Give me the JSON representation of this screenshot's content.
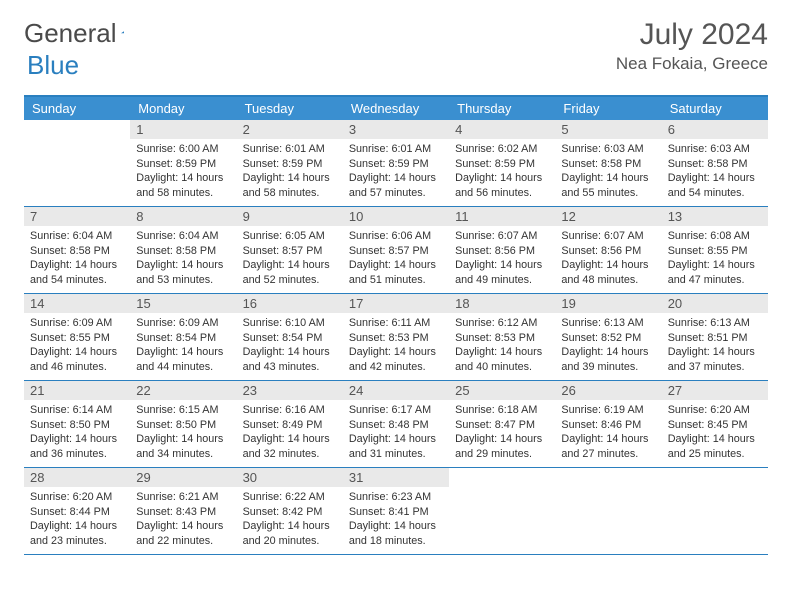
{
  "colors": {
    "header_bar": "#3a8fd0",
    "border_rule": "#2a7fbf",
    "daynum_bg": "#e9e9e9",
    "text": "#333333",
    "title_text": "#555555",
    "logo_gray": "#4a4a4a",
    "logo_blue": "#2a7fbf",
    "background": "#ffffff"
  },
  "logo": {
    "text1": "General",
    "text2": "Blue"
  },
  "title": {
    "month": "July 2024",
    "location": "Nea Fokaia, Greece"
  },
  "day_headers": [
    "Sunday",
    "Monday",
    "Tuesday",
    "Wednesday",
    "Thursday",
    "Friday",
    "Saturday"
  ],
  "weeks": [
    [
      {
        "n": "",
        "sr": "",
        "ss": "",
        "dl1": "",
        "dl2": "",
        "empty": true
      },
      {
        "n": "1",
        "sr": "Sunrise: 6:00 AM",
        "ss": "Sunset: 8:59 PM",
        "dl1": "Daylight: 14 hours",
        "dl2": "and 58 minutes."
      },
      {
        "n": "2",
        "sr": "Sunrise: 6:01 AM",
        "ss": "Sunset: 8:59 PM",
        "dl1": "Daylight: 14 hours",
        "dl2": "and 58 minutes."
      },
      {
        "n": "3",
        "sr": "Sunrise: 6:01 AM",
        "ss": "Sunset: 8:59 PM",
        "dl1": "Daylight: 14 hours",
        "dl2": "and 57 minutes."
      },
      {
        "n": "4",
        "sr": "Sunrise: 6:02 AM",
        "ss": "Sunset: 8:59 PM",
        "dl1": "Daylight: 14 hours",
        "dl2": "and 56 minutes."
      },
      {
        "n": "5",
        "sr": "Sunrise: 6:03 AM",
        "ss": "Sunset: 8:58 PM",
        "dl1": "Daylight: 14 hours",
        "dl2": "and 55 minutes."
      },
      {
        "n": "6",
        "sr": "Sunrise: 6:03 AM",
        "ss": "Sunset: 8:58 PM",
        "dl1": "Daylight: 14 hours",
        "dl2": "and 54 minutes."
      }
    ],
    [
      {
        "n": "7",
        "sr": "Sunrise: 6:04 AM",
        "ss": "Sunset: 8:58 PM",
        "dl1": "Daylight: 14 hours",
        "dl2": "and 54 minutes."
      },
      {
        "n": "8",
        "sr": "Sunrise: 6:04 AM",
        "ss": "Sunset: 8:58 PM",
        "dl1": "Daylight: 14 hours",
        "dl2": "and 53 minutes."
      },
      {
        "n": "9",
        "sr": "Sunrise: 6:05 AM",
        "ss": "Sunset: 8:57 PM",
        "dl1": "Daylight: 14 hours",
        "dl2": "and 52 minutes."
      },
      {
        "n": "10",
        "sr": "Sunrise: 6:06 AM",
        "ss": "Sunset: 8:57 PM",
        "dl1": "Daylight: 14 hours",
        "dl2": "and 51 minutes."
      },
      {
        "n": "11",
        "sr": "Sunrise: 6:07 AM",
        "ss": "Sunset: 8:56 PM",
        "dl1": "Daylight: 14 hours",
        "dl2": "and 49 minutes."
      },
      {
        "n": "12",
        "sr": "Sunrise: 6:07 AM",
        "ss": "Sunset: 8:56 PM",
        "dl1": "Daylight: 14 hours",
        "dl2": "and 48 minutes."
      },
      {
        "n": "13",
        "sr": "Sunrise: 6:08 AM",
        "ss": "Sunset: 8:55 PM",
        "dl1": "Daylight: 14 hours",
        "dl2": "and 47 minutes."
      }
    ],
    [
      {
        "n": "14",
        "sr": "Sunrise: 6:09 AM",
        "ss": "Sunset: 8:55 PM",
        "dl1": "Daylight: 14 hours",
        "dl2": "and 46 minutes."
      },
      {
        "n": "15",
        "sr": "Sunrise: 6:09 AM",
        "ss": "Sunset: 8:54 PM",
        "dl1": "Daylight: 14 hours",
        "dl2": "and 44 minutes."
      },
      {
        "n": "16",
        "sr": "Sunrise: 6:10 AM",
        "ss": "Sunset: 8:54 PM",
        "dl1": "Daylight: 14 hours",
        "dl2": "and 43 minutes."
      },
      {
        "n": "17",
        "sr": "Sunrise: 6:11 AM",
        "ss": "Sunset: 8:53 PM",
        "dl1": "Daylight: 14 hours",
        "dl2": "and 42 minutes."
      },
      {
        "n": "18",
        "sr": "Sunrise: 6:12 AM",
        "ss": "Sunset: 8:53 PM",
        "dl1": "Daylight: 14 hours",
        "dl2": "and 40 minutes."
      },
      {
        "n": "19",
        "sr": "Sunrise: 6:13 AM",
        "ss": "Sunset: 8:52 PM",
        "dl1": "Daylight: 14 hours",
        "dl2": "and 39 minutes."
      },
      {
        "n": "20",
        "sr": "Sunrise: 6:13 AM",
        "ss": "Sunset: 8:51 PM",
        "dl1": "Daylight: 14 hours",
        "dl2": "and 37 minutes."
      }
    ],
    [
      {
        "n": "21",
        "sr": "Sunrise: 6:14 AM",
        "ss": "Sunset: 8:50 PM",
        "dl1": "Daylight: 14 hours",
        "dl2": "and 36 minutes."
      },
      {
        "n": "22",
        "sr": "Sunrise: 6:15 AM",
        "ss": "Sunset: 8:50 PM",
        "dl1": "Daylight: 14 hours",
        "dl2": "and 34 minutes."
      },
      {
        "n": "23",
        "sr": "Sunrise: 6:16 AM",
        "ss": "Sunset: 8:49 PM",
        "dl1": "Daylight: 14 hours",
        "dl2": "and 32 minutes."
      },
      {
        "n": "24",
        "sr": "Sunrise: 6:17 AM",
        "ss": "Sunset: 8:48 PM",
        "dl1": "Daylight: 14 hours",
        "dl2": "and 31 minutes."
      },
      {
        "n": "25",
        "sr": "Sunrise: 6:18 AM",
        "ss": "Sunset: 8:47 PM",
        "dl1": "Daylight: 14 hours",
        "dl2": "and 29 minutes."
      },
      {
        "n": "26",
        "sr": "Sunrise: 6:19 AM",
        "ss": "Sunset: 8:46 PM",
        "dl1": "Daylight: 14 hours",
        "dl2": "and 27 minutes."
      },
      {
        "n": "27",
        "sr": "Sunrise: 6:20 AM",
        "ss": "Sunset: 8:45 PM",
        "dl1": "Daylight: 14 hours",
        "dl2": "and 25 minutes."
      }
    ],
    [
      {
        "n": "28",
        "sr": "Sunrise: 6:20 AM",
        "ss": "Sunset: 8:44 PM",
        "dl1": "Daylight: 14 hours",
        "dl2": "and 23 minutes."
      },
      {
        "n": "29",
        "sr": "Sunrise: 6:21 AM",
        "ss": "Sunset: 8:43 PM",
        "dl1": "Daylight: 14 hours",
        "dl2": "and 22 minutes."
      },
      {
        "n": "30",
        "sr": "Sunrise: 6:22 AM",
        "ss": "Sunset: 8:42 PM",
        "dl1": "Daylight: 14 hours",
        "dl2": "and 20 minutes."
      },
      {
        "n": "31",
        "sr": "Sunrise: 6:23 AM",
        "ss": "Sunset: 8:41 PM",
        "dl1": "Daylight: 14 hours",
        "dl2": "and 18 minutes."
      },
      {
        "n": "",
        "sr": "",
        "ss": "",
        "dl1": "",
        "dl2": "",
        "empty": true
      },
      {
        "n": "",
        "sr": "",
        "ss": "",
        "dl1": "",
        "dl2": "",
        "empty": true
      },
      {
        "n": "",
        "sr": "",
        "ss": "",
        "dl1": "",
        "dl2": "",
        "empty": true
      }
    ]
  ]
}
